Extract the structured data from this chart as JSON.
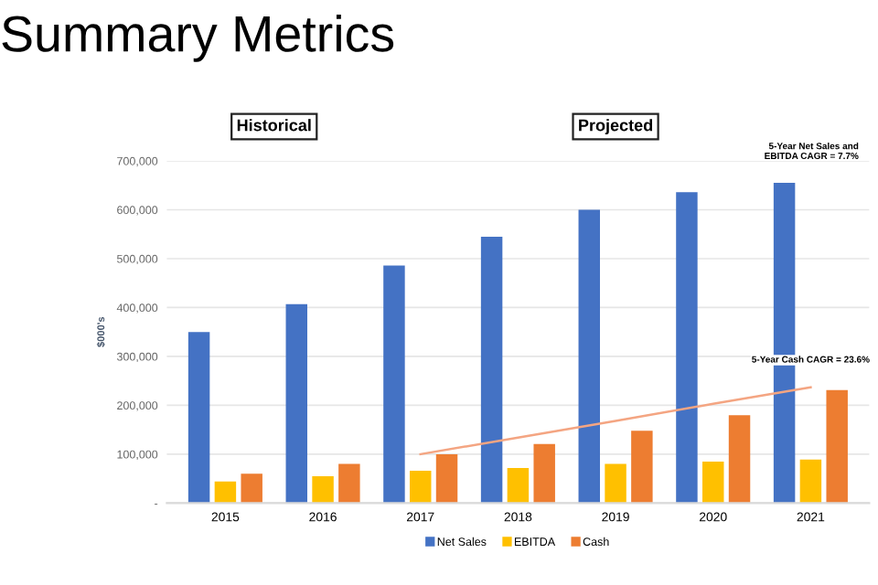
{
  "chart_data": {
    "type": "bar",
    "title": "Summary Metrics",
    "ylabel": "$000's",
    "categories": [
      "2015",
      "2016",
      "2017",
      "2018",
      "2019",
      "2020",
      "2021"
    ],
    "series": [
      {
        "name": "Net Sales",
        "color": "#4472c4",
        "values": [
          350000,
          407000,
          486000,
          545000,
          600000,
          636000,
          655000
        ]
      },
      {
        "name": "EBITDA",
        "color": "#ffc000",
        "values": [
          44000,
          55000,
          66000,
          72000,
          80000,
          85000,
          89000
        ]
      },
      {
        "name": "Cash",
        "color": "#ed7d31",
        "values": [
          60000,
          80000,
          100000,
          121000,
          148000,
          180000,
          231000
        ]
      },
      {
        "type": "line",
        "color": "#f4a582",
        "values": [
          null,
          null,
          100000,
          134000,
          168000,
          203000,
          237000
        ]
      }
    ],
    "ylim": [
      0,
      700000
    ],
    "yticks": [
      {
        "value": 0,
        "label": "-"
      },
      {
        "value": 100000,
        "label": "100,000"
      },
      {
        "value": 200000,
        "label": "200,000"
      },
      {
        "value": 300000,
        "label": "300,000"
      },
      {
        "value": 400000,
        "label": "400,000"
      },
      {
        "value": 500000,
        "label": "500,000"
      },
      {
        "value": 600000,
        "label": "600,000"
      },
      {
        "value": 700000,
        "label": "700,000"
      }
    ],
    "grid": "y",
    "legend": "bottom",
    "annotations": [
      "Historical",
      "Projected",
      "5-Year Net Sales and\nEBITDA CAGR = 7.7%",
      {
        "text": "5-Year Cash CAGR = 23.6%",
        "x": "2021",
        "y": 237000
      }
    ]
  }
}
